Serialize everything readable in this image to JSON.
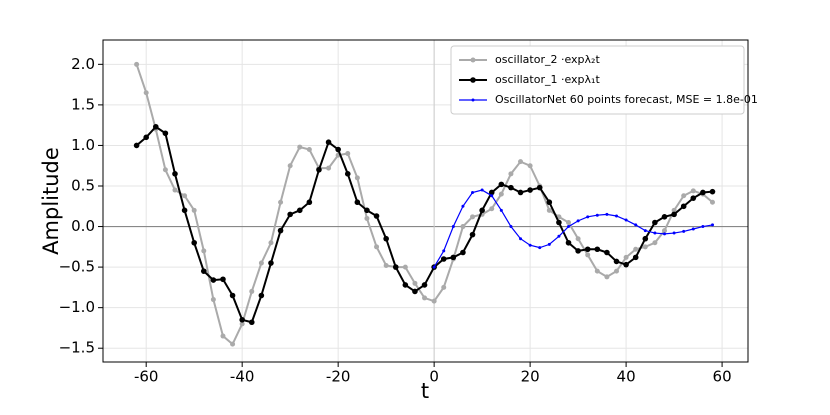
{
  "chart_data": {
    "type": "line",
    "xlabel": "t",
    "ylabel": "Amplitude",
    "x": [
      -62,
      -60,
      -58,
      -56,
      -54,
      -52,
      -50,
      -48,
      -46,
      -44,
      -42,
      -40,
      -38,
      -36,
      -34,
      -32,
      -30,
      -28,
      -26,
      -24,
      -22,
      -20,
      -18,
      -16,
      -14,
      -12,
      -10,
      -8,
      -6,
      -4,
      -2,
      0,
      2,
      4,
      6,
      8,
      10,
      12,
      14,
      16,
      18,
      20,
      22,
      24,
      26,
      28,
      30,
      32,
      34,
      36,
      38,
      40,
      42,
      44,
      46,
      48,
      50,
      52,
      54,
      56,
      58
    ],
    "series": [
      {
        "name": "oscillator_2 ·expλ₂t",
        "color": "#aaaaaa",
        "marker_size": 2.5,
        "line_width": 2,
        "values": [
          2.0,
          1.65,
          1.2,
          0.7,
          0.45,
          0.38,
          0.2,
          -0.3,
          -0.9,
          -1.35,
          -1.45,
          -1.2,
          -0.8,
          -0.45,
          -0.2,
          0.3,
          0.75,
          0.98,
          0.95,
          0.72,
          0.72,
          0.88,
          0.9,
          0.6,
          0.1,
          -0.25,
          -0.48,
          -0.5,
          -0.5,
          -0.7,
          -0.88,
          -0.92,
          -0.75,
          -0.4,
          0.0,
          0.12,
          0.15,
          0.22,
          0.4,
          0.65,
          0.8,
          0.75,
          0.5,
          0.2,
          0.12,
          0.05,
          -0.15,
          -0.35,
          -0.55,
          -0.62,
          -0.55,
          -0.38,
          -0.28,
          -0.25,
          -0.2,
          -0.05,
          0.2,
          0.38,
          0.44,
          0.4,
          0.3
        ]
      },
      {
        "name": "oscillator_1 ·expλ₁t",
        "color": "#000000",
        "marker_size": 2.8,
        "line_width": 2,
        "values": [
          1.0,
          1.1,
          1.23,
          1.15,
          0.65,
          0.2,
          -0.2,
          -0.55,
          -0.66,
          -0.65,
          -0.85,
          -1.15,
          -1.18,
          -0.85,
          -0.45,
          -0.05,
          0.15,
          0.2,
          0.3,
          0.7,
          1.04,
          0.95,
          0.65,
          0.3,
          0.2,
          0.13,
          -0.15,
          -0.5,
          -0.72,
          -0.8,
          -0.72,
          -0.5,
          -0.4,
          -0.38,
          -0.32,
          -0.1,
          0.2,
          0.42,
          0.52,
          0.48,
          0.42,
          0.45,
          0.48,
          0.3,
          0.05,
          -0.2,
          -0.3,
          -0.28,
          -0.28,
          -0.32,
          -0.43,
          -0.47,
          -0.38,
          -0.15,
          0.05,
          0.12,
          0.15,
          0.25,
          0.35,
          0.42,
          0.43
        ]
      },
      {
        "name": "OscillatorNet 60 points forecast, MSE = 1.8e-01",
        "color": "#0000ff",
        "marker_size": 1.5,
        "line_width": 1.2,
        "values": [
          null,
          null,
          null,
          null,
          null,
          null,
          null,
          null,
          null,
          null,
          null,
          null,
          null,
          null,
          null,
          null,
          null,
          null,
          null,
          null,
          null,
          null,
          null,
          null,
          null,
          null,
          null,
          null,
          null,
          null,
          null,
          -0.5,
          -0.3,
          0.0,
          0.25,
          0.42,
          0.45,
          0.38,
          0.2,
          0.0,
          -0.15,
          -0.23,
          -0.26,
          -0.22,
          -0.12,
          0.0,
          0.07,
          0.12,
          0.14,
          0.15,
          0.13,
          0.08,
          0.02,
          -0.05,
          -0.08,
          -0.09,
          -0.08,
          -0.06,
          -0.03,
          0.0,
          0.02
        ]
      }
    ],
    "xlim": [
      -69,
      65.4
    ],
    "ylim": [
      -1.67,
      2.3
    ],
    "xticks": [
      -60,
      -40,
      -20,
      0,
      20,
      40,
      60
    ],
    "yticks": [
      {
        "value": -1.5,
        "label": "−1.5"
      },
      {
        "value": -1,
        "label": "−1.0"
      },
      {
        "value": -0.5,
        "label": "−0.5"
      },
      {
        "value": 0,
        "label": "0.0"
      },
      {
        "value": 0.5,
        "label": "0.5"
      },
      {
        "value": 1,
        "label": "1.0"
      },
      {
        "value": 1.5,
        "label": "1.5"
      },
      {
        "value": 2,
        "label": "2.0"
      }
    ],
    "grid": true,
    "legend": "upper right"
  }
}
